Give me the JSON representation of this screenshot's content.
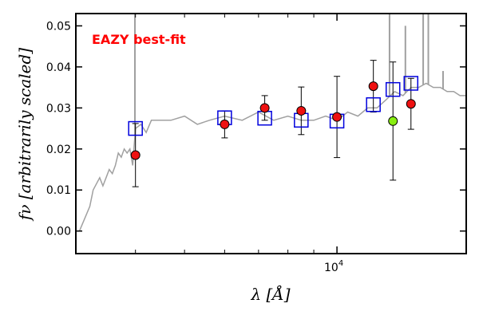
{
  "chart_data": {
    "type": "scatter",
    "title": "",
    "annotation": {
      "text": "EAZY best-fit",
      "color": "#ff0000"
    },
    "xlabel": "λ [Å]",
    "ylabel": "fν [arbitrarily scaled]",
    "xscale": "log",
    "xlim": [
      3050,
      18000
    ],
    "ylim": [
      -0.0055,
      0.053
    ],
    "yticks": [
      0.0,
      0.01,
      0.02,
      0.03,
      0.04,
      0.05
    ],
    "ytick_labels": [
      "0.00",
      "0.01",
      "0.02",
      "0.03",
      "0.04",
      "0.05"
    ],
    "xticks_major": [
      10000
    ],
    "xtick_major_labels": [
      "10",
      "4"
    ],
    "xticks_minor": [
      4000,
      5000,
      6000,
      7000,
      8000,
      9000
    ],
    "grid": false,
    "legend": "none",
    "colors": {
      "sed": "#a0a0a0",
      "model": "#0000dd",
      "obs": "#ee1111",
      "obs_alt": "#88ee11",
      "errorbar": "#000000"
    },
    "sed_continuum": {
      "x": [
        3100,
        3250,
        3300,
        3400,
        3450,
        3500,
        3550,
        3600,
        3650,
        3700,
        3750,
        3800,
        3850,
        3900,
        3950,
        4000,
        4100,
        4200,
        4300,
        4500,
        4700,
        5000,
        5300,
        5600,
        6000,
        6500,
        7000,
        7500,
        8000,
        8500,
        9000,
        9500,
        10000,
        10500,
        11000,
        11500,
        12000,
        12500,
        13000,
        13500,
        14000,
        14500,
        15000,
        15500,
        16000,
        16500,
        17000,
        17500,
        18000
      ],
      "y": [
        0.0,
        0.006,
        0.01,
        0.013,
        0.011,
        0.013,
        0.015,
        0.014,
        0.016,
        0.019,
        0.018,
        0.02,
        0.019,
        0.02,
        0.016,
        0.025,
        0.026,
        0.024,
        0.027,
        0.027,
        0.027,
        0.028,
        0.026,
        0.027,
        0.028,
        0.027,
        0.029,
        0.027,
        0.028,
        0.027,
        0.027,
        0.028,
        0.027,
        0.029,
        0.028,
        0.03,
        0.03,
        0.032,
        0.034,
        0.033,
        0.035,
        0.035,
        0.036,
        0.035,
        0.035,
        0.034,
        0.034,
        0.033,
        0.033
      ]
    },
    "sed_emission_lines": [
      {
        "x": 3990,
        "top": 0.053
      },
      {
        "x": 12700,
        "top": 0.053
      },
      {
        "x": 13650,
        "top": 0.05
      },
      {
        "x": 14800,
        "top": 0.053
      },
      {
        "x": 15150,
        "top": 0.053
      },
      {
        "x": 16200,
        "top": 0.039
      }
    ],
    "series": [
      {
        "role": "model",
        "marker": "open-square",
        "x": [
          4000,
          6000,
          7200,
          8500,
          10000,
          11800,
          12900,
          14000
        ],
        "y": [
          0.025,
          0.0276,
          0.0275,
          0.027,
          0.0268,
          0.0308,
          0.0345,
          0.036
        ]
      },
      {
        "role": "observed",
        "marker": "filled-circle",
        "x": [
          4000,
          6000,
          7200,
          8500,
          10000,
          11800,
          12900,
          14000
        ],
        "y": [
          0.0185,
          0.026,
          0.03,
          0.0293,
          0.0278,
          0.0353,
          0.0268,
          0.031
        ],
        "yerr": [
          0.0077,
          0.0033,
          0.003,
          0.0058,
          0.0099,
          0.0063,
          0.0144,
          0.0062
        ],
        "color_index": [
          0,
          0,
          0,
          0,
          0,
          0,
          1,
          0
        ]
      }
    ]
  }
}
